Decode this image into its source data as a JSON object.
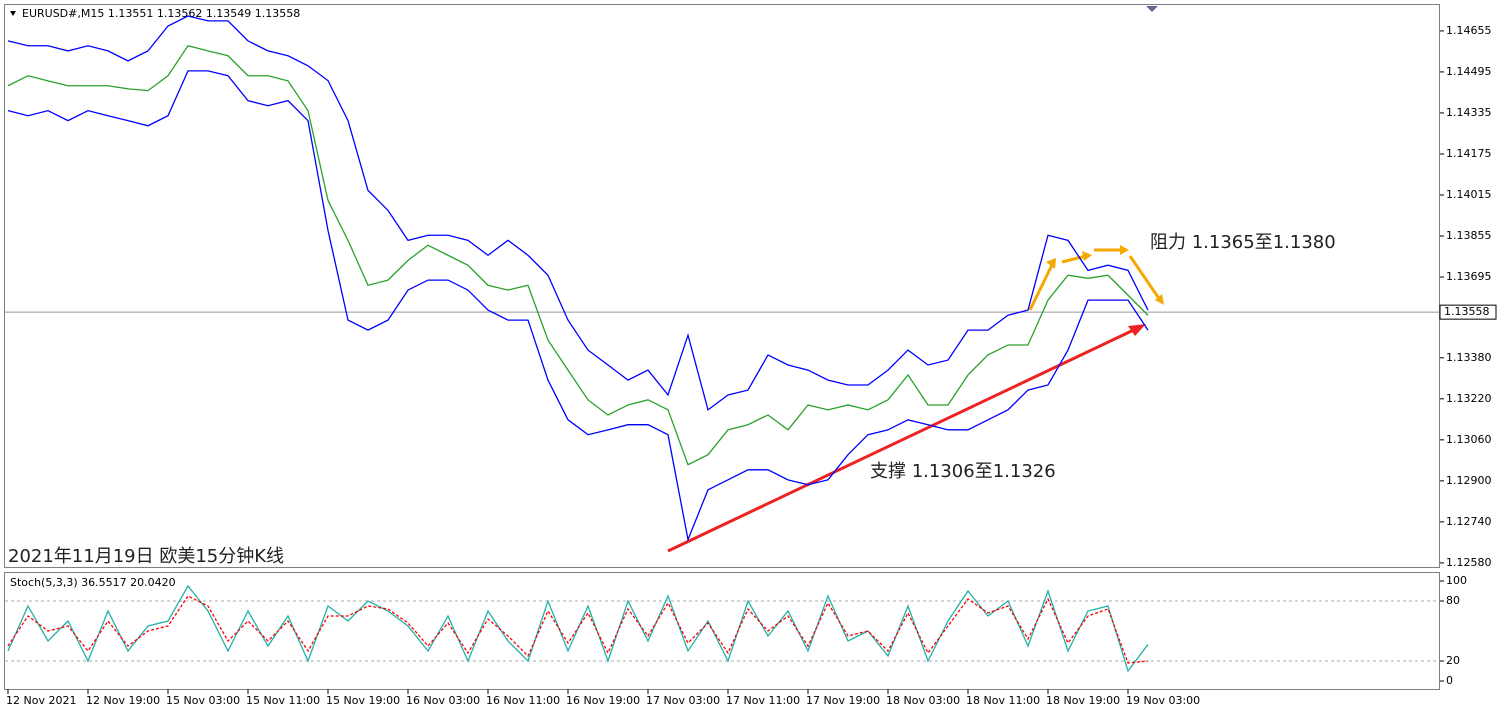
{
  "chart_data": [
    {
      "type": "line",
      "title": "EURUSD#,M15  1.13551 1.13562 1.13549 1.13558",
      "annotations": [
        "阻力 1.1365至1.1380",
        "支撑 1.1306至1.1326",
        "2021年11月19日 欧美15分钟K线"
      ],
      "categories": [
        "12 Nov 2021",
        null,
        null,
        null,
        "12 Nov 19:00",
        null,
        null,
        null,
        "15 Nov 03:00",
        null,
        null,
        null,
        "15 Nov 11:00",
        null,
        null,
        null,
        "15 Nov 19:00",
        null,
        null,
        null,
        "16 Nov 03:00",
        null,
        null,
        null,
        "16 Nov 11:00",
        null,
        null,
        null,
        "16 Nov 19:00",
        null,
        null,
        null,
        "17 Nov 03:00",
        null,
        null,
        null,
        "17 Nov 11:00",
        null,
        null,
        null,
        "17 Nov 19:00",
        null,
        null,
        null,
        "18 Nov 03:00",
        null,
        null,
        null,
        "18 Nov 11:00",
        null,
        null,
        null,
        "18 Nov 19:00",
        null,
        null,
        null,
        "19 Nov 03:00",
        null
      ],
      "series": [
        {
          "color": "#2ca02c",
          "values": [
            1.14441,
            1.1448,
            1.1446,
            1.14441,
            1.14441,
            1.14441,
            1.14429,
            1.14422,
            1.1448,
            1.14597,
            1.14577,
            1.14558,
            1.1448,
            1.1448,
            1.1446,
            1.14344,
            1.13994,
            1.13838,
            1.13663,
            1.13683,
            1.1376,
            1.13819,
            1.1378,
            1.13741,
            1.13663,
            1.13644,
            1.13663,
            1.13449,
            1.13332,
            1.13216,
            1.13157,
            1.13196,
            1.13216,
            1.13177,
            1.12963,
            1.13002,
            1.13099,
            1.13119,
            1.13157,
            1.13099,
            1.13196,
            1.13177,
            1.13196,
            1.13177,
            1.13216,
            1.13313,
            1.13196,
            1.13196,
            1.13313,
            1.13391,
            1.1343,
            1.1343,
            1.13605,
            1.13702,
            1.1369,
            1.13702,
            1.13624,
            1.13546
          ]
        },
        {
          "color": "#0000ff",
          "values": [
            1.14616,
            1.14597,
            1.14597,
            1.14577,
            1.14597,
            1.14577,
            1.14538,
            1.14577,
            1.14674,
            1.14713,
            1.14694,
            1.14694,
            1.14616,
            1.14577,
            1.14558,
            1.14519,
            1.14461,
            1.14305,
            1.14033,
            1.13955,
            1.13838,
            1.13858,
            1.13858,
            1.13838,
            1.1378,
            1.13838,
            1.1378,
            1.13702,
            1.13527,
            1.1341,
            1.13352,
            1.13293,
            1.13332,
            1.13235,
            1.13468,
            1.13177,
            1.13235,
            1.13254,
            1.13391,
            1.13352,
            1.13332,
            1.13293,
            1.13274,
            1.13274,
            1.13332,
            1.1341,
            1.13352,
            1.13371,
            1.13488,
            1.13488,
            1.13546,
            1.13566,
            1.13858,
            1.13838,
            1.13721,
            1.13741,
            1.13721,
            1.13566
          ]
        },
        {
          "color": "#0000ff",
          "values": [
            1.14344,
            1.14324,
            1.14344,
            1.14305,
            1.14344,
            1.14324,
            1.14305,
            1.14285,
            1.14324,
            1.14499,
            1.14499,
            1.1448,
            1.14383,
            1.14363,
            1.14383,
            1.14305,
            1.13877,
            1.13527,
            1.13488,
            1.13527,
            1.13644,
            1.13683,
            1.13683,
            1.13644,
            1.13566,
            1.13527,
            1.13527,
            1.13293,
            1.13138,
            1.1308,
            1.13099,
            1.13119,
            1.13119,
            1.1308,
            1.12671,
            1.12865,
            1.12904,
            1.12943,
            1.12943,
            1.12904,
            1.12885,
            1.12904,
            1.13002,
            1.1308,
            1.13099,
            1.13138,
            1.13119,
            1.13099,
            1.13099,
            1.13138,
            1.13177,
            1.13254,
            1.13274,
            1.1341,
            1.13605,
            1.13605,
            1.13605,
            1.13488
          ]
        }
      ],
      "current_price": 1.13558,
      "ylim": [
        1.12564,
        1.14756
      ],
      "yticks": [
        1.14655,
        1.14495,
        1.14335,
        1.14175,
        1.14015,
        1.13855,
        1.13695,
        {
          "value": 1.1338,
          "label": "1.13380"
        },
        {
          "value": 1.1322,
          "label": "1.13220"
        },
        {
          "value": 1.1306,
          "label": "1.13060"
        },
        {
          "value": 1.129,
          "label": "1.12900"
        },
        {
          "value": 1.1274,
          "label": "1.12740"
        },
        {
          "value": 1.1258,
          "label": "1.12580"
        }
      ]
    },
    {
      "type": "line",
      "title": "Stoch(5,3,3) 36.5517 20.0420",
      "series": [
        {
          "color": "#20b2aa",
          "values": [
            30,
            75,
            40,
            60,
            20,
            70,
            30,
            55,
            60,
            95,
            70,
            30,
            70,
            35,
            65,
            20,
            75,
            60,
            80,
            70,
            55,
            30,
            65,
            20,
            70,
            40,
            20,
            80,
            30,
            75,
            20,
            80,
            40,
            85,
            30,
            60,
            20,
            80,
            45,
            70,
            30,
            85,
            40,
            50,
            25,
            75,
            20,
            60,
            90,
            65,
            80,
            35,
            90,
            30,
            70,
            75,
            10,
            36.5517
          ]
        },
        {
          "color": "#ff0000",
          "dashed": true,
          "values": [
            35,
            65,
            50,
            55,
            30,
            60,
            35,
            50,
            55,
            85,
            75,
            40,
            60,
            40,
            60,
            30,
            65,
            65,
            75,
            72,
            58,
            35,
            58,
            28,
            62,
            45,
            25,
            70,
            38,
            68,
            28,
            72,
            45,
            78,
            38,
            58,
            28,
            72,
            50,
            65,
            35,
            78,
            45,
            50,
            30,
            68,
            28,
            55,
            82,
            68,
            75,
            42,
            82,
            38,
            65,
            72,
            18,
            20.042
          ]
        }
      ],
      "levels": [
        80,
        20
      ],
      "ylim": [
        -8,
        108
      ],
      "yticks": [
        100,
        80,
        20,
        0
      ]
    }
  ]
}
